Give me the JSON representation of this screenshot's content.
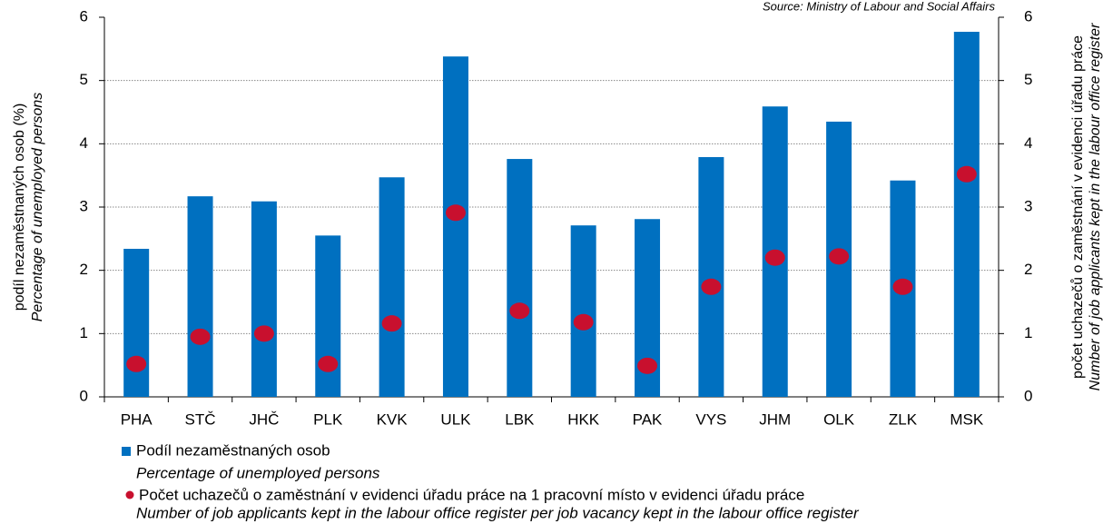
{
  "chart_data": {
    "type": "bar",
    "source": "Source: Ministry of Labour and Social Affairs",
    "ylabel": [
      "podíl nezaměstnaných osob (%)",
      "Percentage of unemployed persons"
    ],
    "y2label": [
      "počet uchazečů o zaměstnání v evidenci úřadu práce",
      "Number of job applicants kept in the labour office register"
    ],
    "categories": [
      "PHA",
      "STČ",
      "JHČ",
      "PLK",
      "KVK",
      "ULK",
      "LBK",
      "HKK",
      "PAK",
      "VYS",
      "JHM",
      "OLK",
      "ZLK",
      "MSK"
    ],
    "series": [
      {
        "name": "Podíl nezaměstnaných osob",
        "name_en": "Percentage of unemployed persons",
        "type": "bar",
        "color": "#0070c0",
        "values": [
          2.34,
          3.17,
          3.09,
          2.55,
          3.47,
          5.38,
          3.76,
          2.71,
          2.81,
          3.79,
          4.59,
          4.35,
          3.42,
          5.77
        ]
      },
      {
        "name": "Počet uchazečů o zaměstnání v evidenci úřadu práce na 1 pracovní místo v evidenci úřadu práce",
        "name_en": "Number of job applicants kept in the labour office register per job vacancy kept in the labour office register",
        "type": "scatter",
        "axis": "y2",
        "color": "#c8102e",
        "values": [
          0.52,
          0.95,
          1.0,
          0.52,
          1.16,
          2.91,
          1.36,
          1.18,
          0.49,
          1.74,
          2.2,
          2.22,
          1.74,
          3.52
        ]
      }
    ],
    "ylim": [
      0,
      6
    ],
    "yticks": [
      0,
      1,
      2,
      3,
      4,
      5,
      6
    ],
    "y2lim": [
      0,
      6
    ],
    "y2ticks": [
      0,
      1,
      2,
      3,
      4,
      5,
      6
    ],
    "grid": true
  }
}
